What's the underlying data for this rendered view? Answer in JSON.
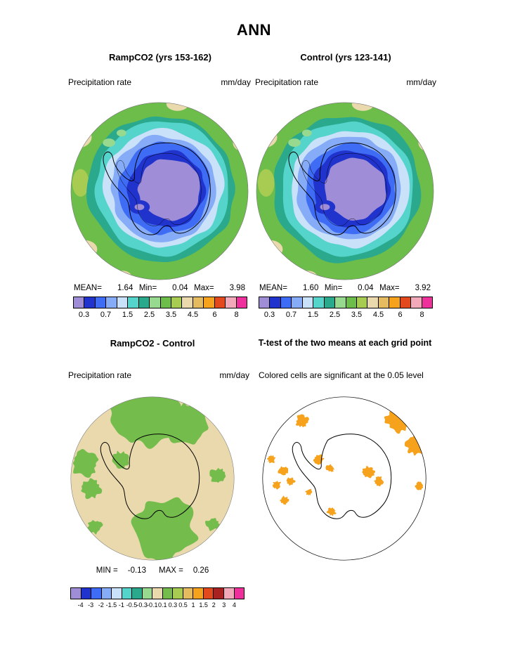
{
  "title": "ANN",
  "panels": {
    "ramp": {
      "title": "RampCO2 (yrs 153-162)",
      "field_label": "Precipitation rate",
      "units": "mm/day",
      "stats": {
        "mean_label": "MEAN=",
        "mean": "1.64",
        "min_label": "Min=",
        "min": "0.04",
        "max_label": "Max=",
        "max": "3.98"
      }
    },
    "control": {
      "title": "Control (yrs 123-141)",
      "field_label": "Precipitation rate",
      "units": "mm/day",
      "stats": {
        "mean_label": "MEAN=",
        "mean": "1.60",
        "min_label": "Min=",
        "min": "0.04",
        "max_label": "Max=",
        "max": "3.92"
      }
    },
    "diff": {
      "title": "RampCO2 - Control",
      "field_label": "Precipitation rate",
      "units": "mm/day",
      "stats": {
        "min_label": "MIN =",
        "min": "-0.13",
        "max_label": "MAX =",
        "max": "0.26"
      }
    },
    "ttest": {
      "title": "T-test of the two means at each grid point",
      "note": "Colored cells are significant at the 0.05 level"
    }
  },
  "colorbar_top": {
    "tick_labels": [
      "0.3",
      "0.7",
      "1.5",
      "2.5",
      "3.5",
      "4.5",
      "6",
      "8"
    ]
  },
  "colorbar_diff": {
    "tick_labels": [
      "-4",
      "-3",
      "-2",
      "-1.5",
      "-1",
      "-0.5",
      "-0.3",
      "-0.1",
      "0.1",
      "0.3",
      "0.5",
      "1",
      "1.5",
      "2",
      "3",
      "4"
    ]
  },
  "chart_data": [
    {
      "type": "heatmap",
      "panel": "RampCO2 (yrs 153-162)",
      "projection": "south polar stereographic (Antarctica)",
      "variable": "Precipitation rate",
      "units": "mm/day",
      "stats": {
        "mean": 1.64,
        "min": 0.04,
        "max": 3.98
      },
      "contour_levels": [
        0.3,
        0.5,
        0.7,
        1,
        1.5,
        2,
        2.5,
        3,
        3.5,
        4,
        4.5,
        5,
        6,
        7,
        8
      ],
      "palette": [
        "#a08dd8",
        "#2033cc",
        "#3f6cf4",
        "#86acf8",
        "#c9e1f9",
        "#55d4cc",
        "#2aa98c",
        "#97d98e",
        "#6cbd4a",
        "#a8cc52",
        "#ead9ad",
        "#e5bb60",
        "#f6a21d",
        "#e2491c",
        "#f2a9ba",
        "#ef309c"
      ],
      "description": "Precipitation rises from ~0.3 mm/day over the Antarctic interior (purple) through blues and cyans to ~2-3 mm/day over the Southern Ocean (green), with dry tan patches at the map rim"
    },
    {
      "type": "heatmap",
      "panel": "Control (yrs 123-141)",
      "projection": "south polar stereographic (Antarctica)",
      "variable": "Precipitation rate",
      "units": "mm/day",
      "stats": {
        "mean": 1.6,
        "min": 0.04,
        "max": 3.92
      },
      "contour_levels": [
        0.3,
        0.5,
        0.7,
        1,
        1.5,
        2,
        2.5,
        3,
        3.5,
        4,
        4.5,
        5,
        6,
        7,
        8
      ],
      "palette": [
        "#a08dd8",
        "#2033cc",
        "#3f6cf4",
        "#86acf8",
        "#c9e1f9",
        "#55d4cc",
        "#2aa98c",
        "#97d98e",
        "#6cbd4a",
        "#a8cc52",
        "#ead9ad",
        "#e5bb60",
        "#f6a21d",
        "#e2491c",
        "#f2a9ba",
        "#ef309c"
      ],
      "description": "Nearly identical spatial pattern to the RampCO2 panel"
    },
    {
      "type": "heatmap",
      "panel": "RampCO2 - Control",
      "projection": "south polar stereographic (Antarctica)",
      "variable": "Precipitation rate difference",
      "units": "mm/day",
      "stats": {
        "min": -0.13,
        "max": 0.26
      },
      "contour_levels": [
        -4,
        -3,
        -2,
        -1.5,
        -1,
        -0.5,
        -0.3,
        -0.1,
        0.1,
        0.3,
        0.5,
        1,
        1.5,
        2,
        3,
        4
      ],
      "palette": [
        "#a08dd8",
        "#2033cc",
        "#3f6cf4",
        "#86acf8",
        "#c9e1f9",
        "#55d4cc",
        "#2aa98c",
        "#97d98e",
        "#ead9ad",
        "#74bd4c",
        "#a8cc52",
        "#e5bb60",
        "#f6a21d",
        "#e2491c",
        "#a82222",
        "#f2a9ba",
        "#ef309c"
      ],
      "description": "Mostly near-zero differences (tan, -0.1 to 0.1 mm/day) with scattered positive anomalies of 0.1-0.3 mm/day (green blobs)"
    },
    {
      "type": "heatmap",
      "panel": "T-test of the two means at each grid point",
      "projection": "south polar stereographic (Antarctica)",
      "note": "Colored cells are significant at the 0.05 level",
      "background": "#ffffff",
      "significant_color": "#f6a21d",
      "description": "Scattered orange grid cells mark points where the RampCO2 - Control difference is significant at the 0.05 level; largest cluster at upper right"
    }
  ]
}
